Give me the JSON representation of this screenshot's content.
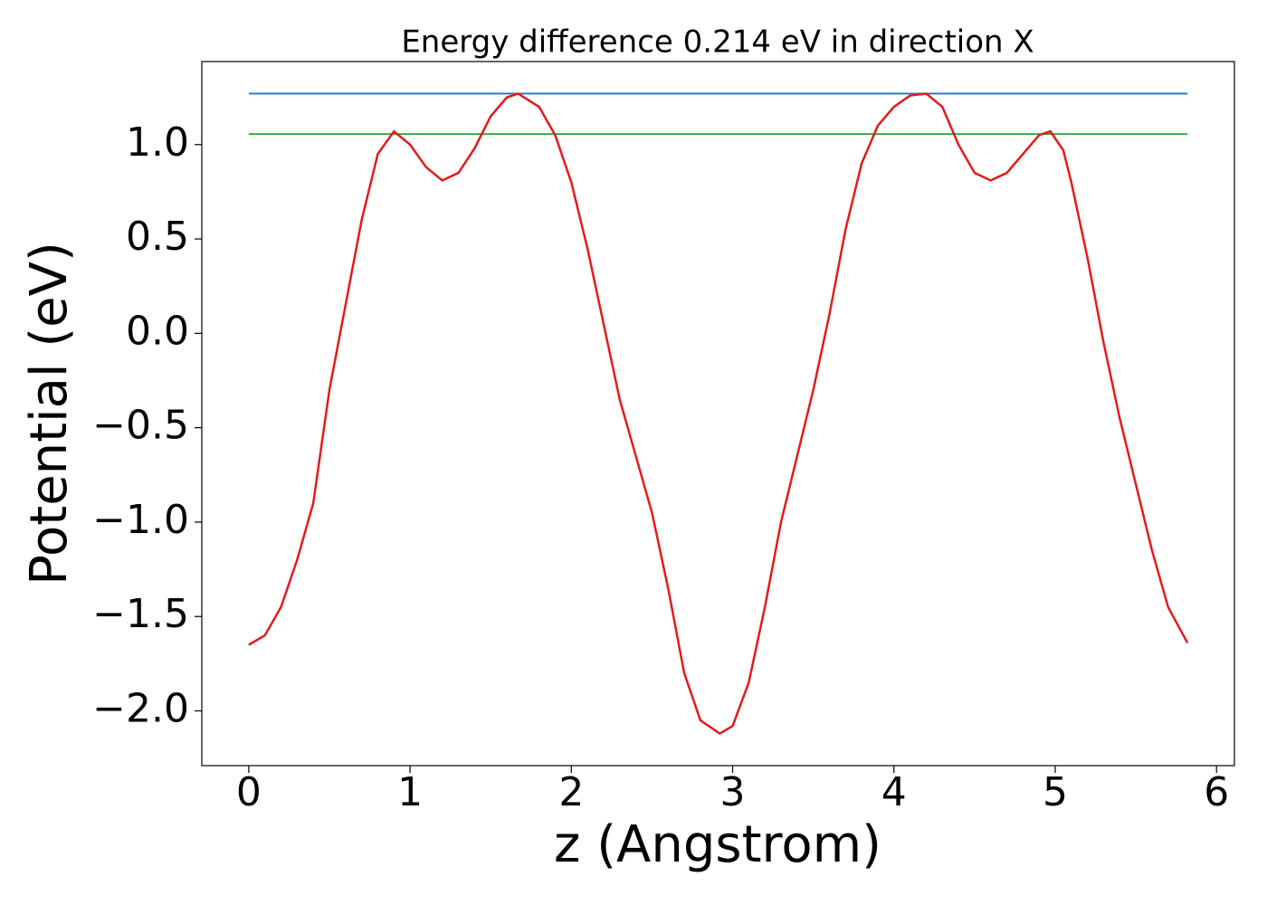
{
  "chart_data": {
    "type": "line",
    "title": "Energy difference 0.214 eV in direction X",
    "xlabel": "z (Angstrom)",
    "ylabel": "Potential (eV)",
    "xlim": [
      -0.291,
      6.111
    ],
    "ylim": [
      -2.29,
      1.44
    ],
    "xticks": [
      0,
      1,
      2,
      3,
      4,
      5,
      6
    ],
    "yticks": [
      {
        "value": -2.0,
        "label": "−2.0"
      },
      {
        "value": -1.5,
        "label": "−1.5"
      },
      {
        "value": -1.0,
        "label": "−1.0"
      },
      {
        "value": -0.5,
        "label": "−0.5"
      },
      {
        "value": 0.0,
        "label": "0.0"
      },
      {
        "value": 0.5,
        "label": "0.5"
      },
      {
        "value": 1.0,
        "label": "1.0"
      }
    ],
    "grid": false,
    "series": [
      {
        "color": "#1f77b4",
        "x": [
          0,
          5.82
        ],
        "values": [
          1.27,
          1.27
        ]
      },
      {
        "color": "#2ca02c",
        "x": [
          0,
          5.82
        ],
        "values": [
          1.056,
          1.056
        ]
      },
      {
        "color": "#e41a1c",
        "x": [
          0,
          0.1,
          0.2,
          0.3,
          0.4,
          0.5,
          0.6,
          0.7,
          0.8,
          0.9,
          1.0,
          1.1,
          1.2,
          1.3,
          1.4,
          1.5,
          1.6,
          1.67,
          1.8,
          1.9,
          2.0,
          2.1,
          2.2,
          2.3,
          2.4,
          2.5,
          2.6,
          2.7,
          2.8,
          2.92,
          3.0,
          3.1,
          3.2,
          3.3,
          3.4,
          3.5,
          3.6,
          3.7,
          3.8,
          3.9,
          4.0,
          4.1,
          4.2,
          4.3,
          4.4,
          4.5,
          4.6,
          4.7,
          4.8,
          4.9,
          4.97,
          5.05,
          5.1,
          5.2,
          5.3,
          5.4,
          5.5,
          5.6,
          5.7,
          5.82
        ],
        "values": [
          -1.65,
          -1.6,
          -1.45,
          -1.2,
          -0.9,
          -0.3,
          0.15,
          0.6,
          0.95,
          1.07,
          1.0,
          0.88,
          0.81,
          0.85,
          0.98,
          1.15,
          1.25,
          1.27,
          1.2,
          1.05,
          0.8,
          0.45,
          0.05,
          -0.35,
          -0.65,
          -0.95,
          -1.35,
          -1.8,
          -2.05,
          -2.12,
          -2.08,
          -1.85,
          -1.45,
          -1.0,
          -0.65,
          -0.3,
          0.1,
          0.55,
          0.9,
          1.1,
          1.2,
          1.26,
          1.27,
          1.2,
          1.0,
          0.85,
          0.81,
          0.85,
          0.95,
          1.05,
          1.07,
          0.97,
          0.8,
          0.4,
          -0.05,
          -0.45,
          -0.8,
          -1.15,
          -1.45,
          -1.64
        ]
      }
    ]
  }
}
